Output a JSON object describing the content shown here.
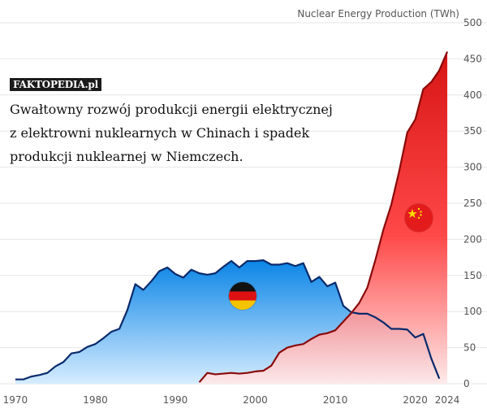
{
  "caption": {
    "watermark": "FAKTOPEDIA.pl",
    "lines": [
      "Gwałtowny rozwój produkcji energii elektrycznej",
      "z elektrowni nuklearnych w Chinach i spadek",
      "produkcji nuklearnej w Niemczech."
    ]
  },
  "flags": {
    "germany": "germany-flag-icon",
    "china": "china-flag-icon"
  },
  "chart_data": {
    "type": "area",
    "title": "Nuclear Energy Production (TWh)",
    "xlabel": "",
    "ylabel": "",
    "xlim": [
      1969.5,
      2024.5
    ],
    "ylim": [
      0,
      500
    ],
    "y_ticks": [
      0,
      50,
      100,
      150,
      200,
      250,
      300,
      350,
      400,
      450,
      500
    ],
    "x_ticks": [
      1970,
      1980,
      1990,
      2000,
      2010,
      2020,
      2024
    ],
    "grid": true,
    "series": [
      {
        "name": "",
        "color": "#0a2a6b",
        "fill_top": "#0a85e6",
        "fill_bottom": "#d6ecff",
        "x": [
          1970,
          1971,
          1972,
          1973,
          1974,
          1975,
          1976,
          1977,
          1978,
          1979,
          1980,
          1981,
          1982,
          1983,
          1984,
          1985,
          1986,
          1987,
          1988,
          1989,
          1990,
          1991,
          1992,
          1993,
          1994,
          1995,
          1996,
          1997,
          1998,
          1999,
          2000,
          2001,
          2002,
          2003,
          2004,
          2005,
          2006,
          2007,
          2008,
          2009,
          2010,
          2011,
          2012,
          2013,
          2014,
          2015,
          2016,
          2017,
          2018,
          2019,
          2020,
          2021,
          2022,
          2023
        ],
        "y": [
          6,
          6,
          10,
          12,
          15,
          24,
          30,
          42,
          44,
          51,
          55,
          63,
          72,
          76,
          102,
          138,
          130,
          142,
          156,
          161,
          152,
          147,
          158,
          153,
          151,
          153,
          162,
          170,
          161,
          170,
          170,
          171,
          165,
          165,
          167,
          163,
          167,
          141,
          148,
          135,
          140,
          108,
          99,
          97,
          97,
          92,
          85,
          76,
          76,
          75,
          64,
          69,
          35,
          7
        ]
      },
      {
        "name": "",
        "color": "#8a0a0a",
        "fill_top": "#d40000",
        "fill_bottom": "#ffe4e4",
        "x": [
          1993,
          1994,
          1995,
          1996,
          1997,
          1998,
          1999,
          2000,
          2001,
          2002,
          2003,
          2004,
          2005,
          2006,
          2007,
          2008,
          2009,
          2010,
          2011,
          2012,
          2013,
          2014,
          2015,
          2016,
          2017,
          2018,
          2019,
          2020,
          2021,
          2022,
          2023,
          2024
        ],
        "y": [
          2,
          15,
          13,
          14,
          15,
          14,
          15,
          17,
          18,
          25,
          43,
          50,
          53,
          55,
          62,
          68,
          70,
          74,
          86,
          98,
          112,
          133,
          171,
          213,
          248,
          295,
          348,
          366,
          408,
          418,
          434,
          460
        ]
      }
    ]
  }
}
